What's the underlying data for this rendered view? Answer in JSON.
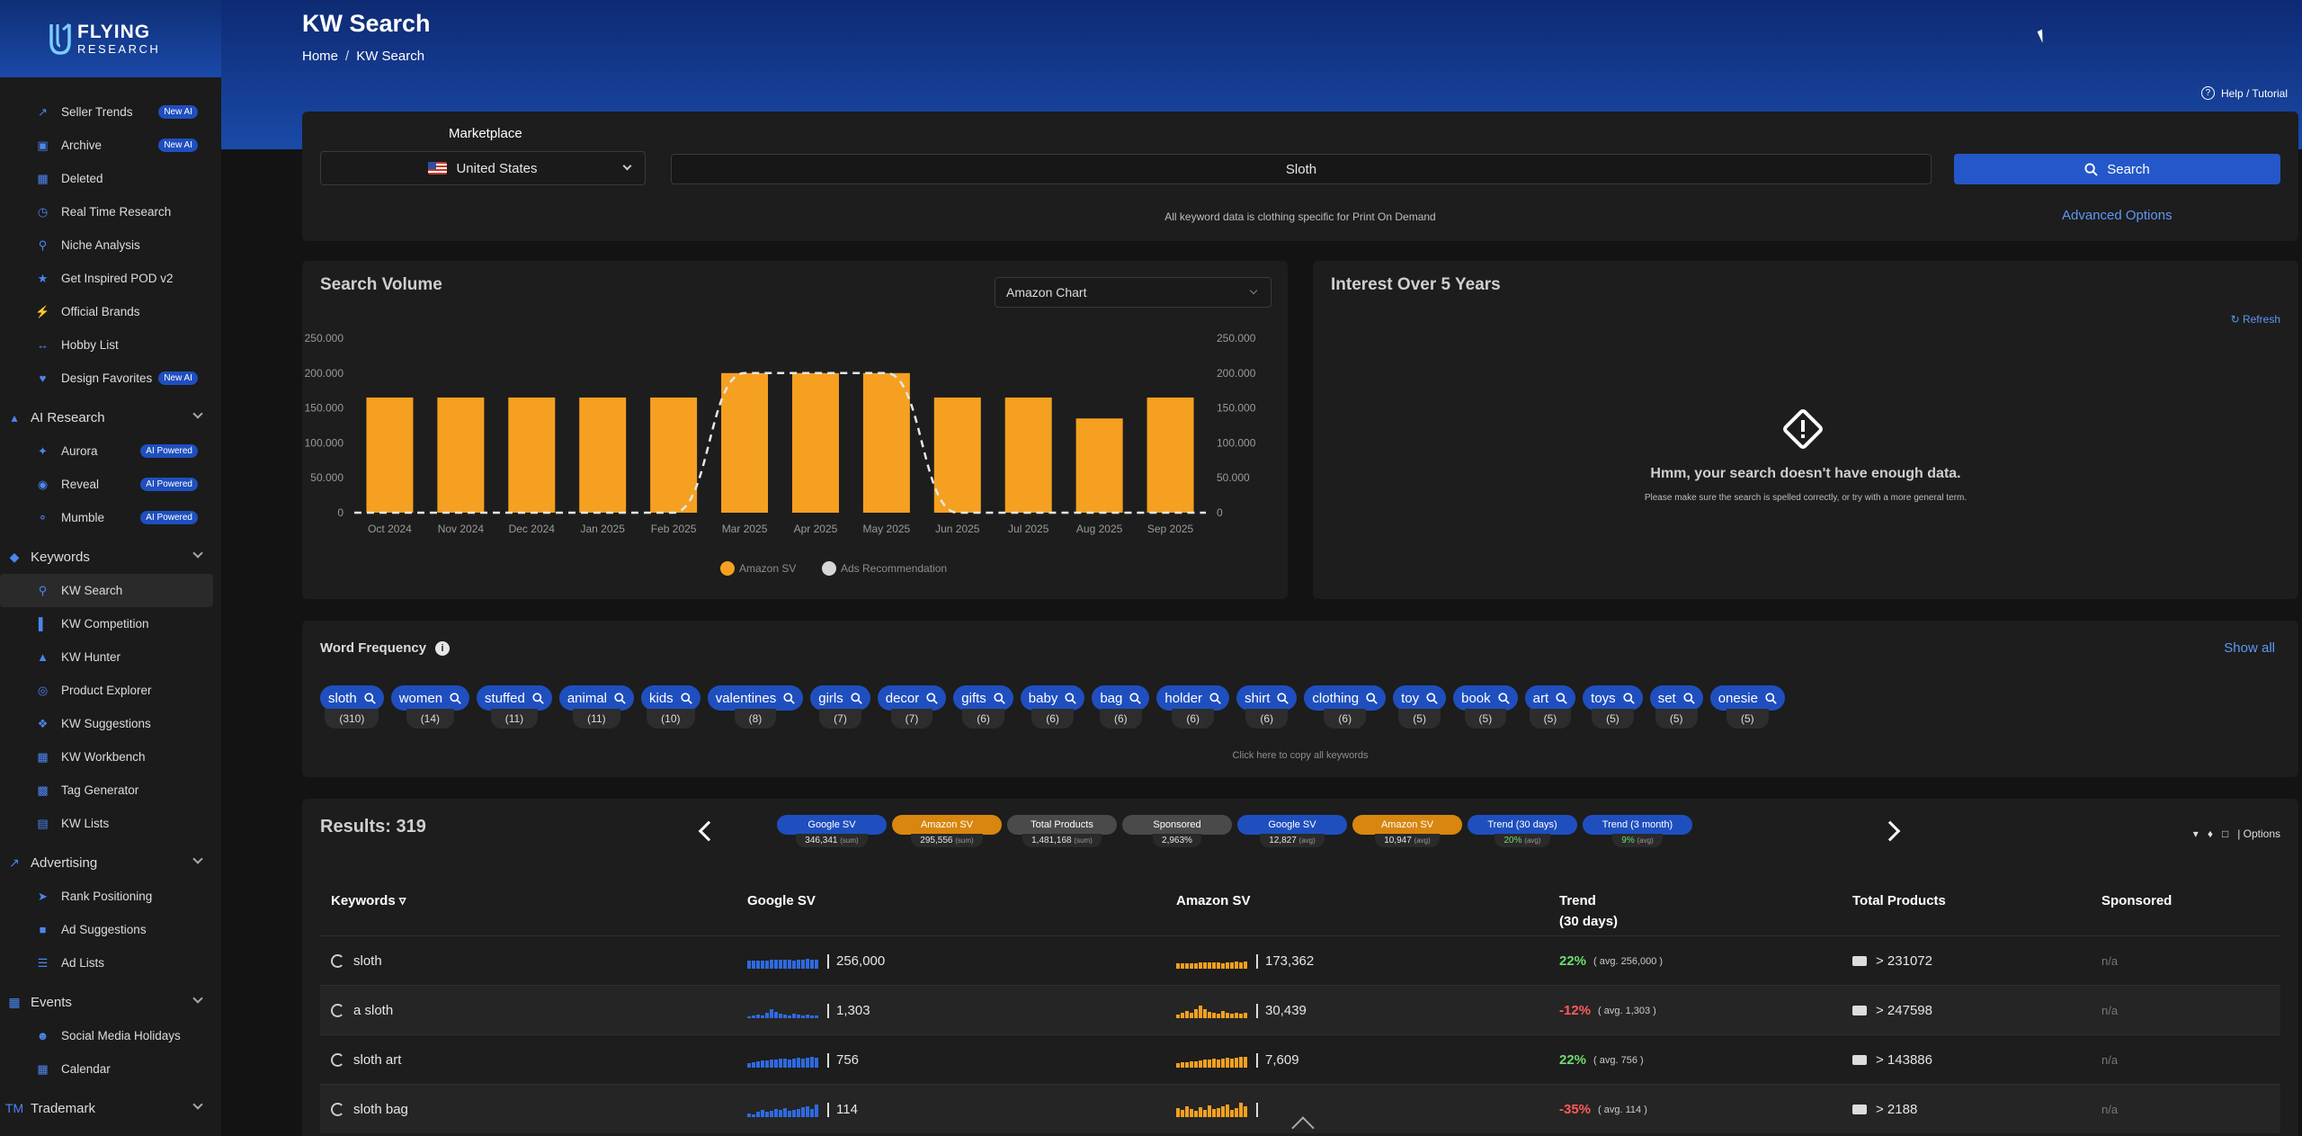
{
  "brand": {
    "line1": "FLYING",
    "line2": "RESEARCH"
  },
  "sidebar": {
    "top_items": [
      {
        "label": "Seller Trends",
        "badge": "New AI",
        "icon": "trend-icon"
      },
      {
        "label": "Archive",
        "badge": "New AI",
        "icon": "archive-icon"
      },
      {
        "label": "Deleted",
        "badge": "",
        "icon": "trash-icon"
      },
      {
        "label": "Real Time Research",
        "badge": "",
        "icon": "clock-icon"
      },
      {
        "label": "Niche Analysis",
        "badge": "",
        "icon": "search-icon"
      },
      {
        "label": "Get Inspired POD v2",
        "badge": "",
        "icon": "lightbulb-icon"
      },
      {
        "label": "Official Brands",
        "badge": "",
        "icon": "bolt-icon"
      },
      {
        "label": "Hobby List",
        "badge": "",
        "icon": "dumbbell-icon"
      },
      {
        "label": "Design Favorites",
        "badge": "New AI",
        "icon": "heart-icon"
      }
    ],
    "groups": [
      {
        "label": "AI Research",
        "icon": "flask-icon",
        "items": [
          {
            "label": "Aurora",
            "badge": "AI Powered",
            "icon": "sparkle-icon"
          },
          {
            "label": "Reveal",
            "badge": "AI Powered",
            "icon": "eye-icon"
          },
          {
            "label": "Mumble",
            "badge": "AI Powered",
            "icon": "microphone-icon"
          }
        ]
      },
      {
        "label": "Keywords",
        "icon": "tags-icon",
        "items": [
          {
            "label": "KW Search",
            "badge": "",
            "icon": "search-icon",
            "active": true
          },
          {
            "label": "KW Competition",
            "badge": "",
            "icon": "bar-chart-icon"
          },
          {
            "label": "KW Hunter",
            "badge": "",
            "icon": "chart-icon"
          },
          {
            "label": "Product Explorer",
            "badge": "",
            "icon": "compass-icon"
          },
          {
            "label": "KW Suggestions",
            "badge": "",
            "icon": "puzzle-icon"
          },
          {
            "label": "KW Workbench",
            "badge": "",
            "icon": "table-icon"
          },
          {
            "label": "Tag Generator",
            "badge": "",
            "icon": "briefcase-icon"
          },
          {
            "label": "KW Lists",
            "badge": "",
            "icon": "document-icon"
          }
        ]
      },
      {
        "label": "Advertising",
        "icon": "line-chart-icon",
        "items": [
          {
            "label": "Rank Positioning",
            "badge": "",
            "icon": "rocket-icon"
          },
          {
            "label": "Ad Suggestions",
            "badge": "",
            "icon": "ad-icon"
          },
          {
            "label": "Ad Lists",
            "badge": "",
            "icon": "list-icon"
          }
        ]
      },
      {
        "label": "Events",
        "icon": "calendar-icon",
        "items": [
          {
            "label": "Social Media Holidays",
            "badge": "",
            "icon": "people-icon"
          },
          {
            "label": "Calendar",
            "badge": "",
            "icon": "calendar-icon"
          }
        ]
      },
      {
        "label": "Trademark",
        "icon": "tm-icon",
        "items": []
      }
    ]
  },
  "header": {
    "title": "KW Search",
    "breadcrumb": {
      "home": "Home",
      "sep": "/",
      "current": "KW Search"
    },
    "help": "Help / Tutorial"
  },
  "search": {
    "marketplace_label": "Marketplace",
    "marketplace_value": "United States",
    "keyword_value": "Sloth",
    "button": "Search",
    "note": "All keyword data is clothing specific for Print On Demand",
    "advanced": "Advanced Options"
  },
  "search_volume": {
    "title": "Search Volume",
    "chart_select": "Amazon Chart"
  },
  "chart_data": {
    "type": "bar",
    "categories": [
      "Oct 2024",
      "Nov 2024",
      "Dec 2024",
      "Jan 2025",
      "Feb 2025",
      "Mar 2025",
      "Apr 2025",
      "May 2025",
      "Jun 2025",
      "Jul 2025",
      "Aug 2025",
      "Sep 2025"
    ],
    "series": [
      {
        "name": "Amazon SV",
        "type": "bar",
        "color": "#f5a020",
        "values": [
          165000,
          165000,
          165000,
          165000,
          165000,
          200000,
          200000,
          200000,
          165000,
          165000,
          135000,
          165000
        ]
      },
      {
        "name": "Ads Recommendation",
        "type": "line",
        "color": "#e6e6e6",
        "values": [
          0,
          0,
          0,
          0,
          0,
          200000,
          200000,
          200000,
          0,
          0,
          0,
          0
        ]
      }
    ],
    "ylim": [
      0,
      250000
    ],
    "yticks": [
      "0",
      "50.000",
      "100.000",
      "150.000",
      "200.000",
      "250.000"
    ],
    "legend": "bottom"
  },
  "interest": {
    "title": "Interest Over 5 Years",
    "refresh": "Refresh",
    "nodata_title": "Hmm, your search doesn't have enough data.",
    "nodata_sub": "Please make sure the search is spelled correctly, or try with a more general term."
  },
  "word_frequency": {
    "title": "Word Frequency",
    "show_all": "Show all",
    "copy_hint": "Click here to copy all keywords",
    "chips": [
      {
        "word": "sloth",
        "count": "(310)"
      },
      {
        "word": "women",
        "count": "(14)"
      },
      {
        "word": "stuffed",
        "count": "(11)"
      },
      {
        "word": "animal",
        "count": "(11)"
      },
      {
        "word": "kids",
        "count": "(10)"
      },
      {
        "word": "valentines",
        "count": "(8)"
      },
      {
        "word": "girls",
        "count": "(7)"
      },
      {
        "word": "decor",
        "count": "(7)"
      },
      {
        "word": "gifts",
        "count": "(6)"
      },
      {
        "word": "baby",
        "count": "(6)"
      },
      {
        "word": "bag",
        "count": "(6)"
      },
      {
        "word": "holder",
        "count": "(6)"
      },
      {
        "word": "shirt",
        "count": "(6)"
      },
      {
        "word": "clothing",
        "count": "(6)"
      },
      {
        "word": "toy",
        "count": "(5)"
      },
      {
        "word": "book",
        "count": "(5)"
      },
      {
        "word": "art",
        "count": "(5)"
      },
      {
        "word": "toys",
        "count": "(5)"
      },
      {
        "word": "set",
        "count": "(5)"
      },
      {
        "word": "onesie",
        "count": "(5)"
      }
    ]
  },
  "results": {
    "title": "Results: 319",
    "options": "| Options",
    "stats": [
      {
        "label": "Google SV",
        "value": "346,341",
        "unit": "(sum)",
        "color": "#1f4fbf"
      },
      {
        "label": "Amazon SV",
        "value": "295,556",
        "unit": "(sum)",
        "color": "#d8860f"
      },
      {
        "label": "Total Products",
        "value": "1,481,168",
        "unit": "(sum)",
        "color": "#4a4a4a"
      },
      {
        "label": "Sponsored",
        "value": "2,963%",
        "unit": "",
        "color": "#4a4a4a"
      },
      {
        "label": "Google SV",
        "value": "12,827",
        "unit": "(avg)",
        "color": "#1f4fbf"
      },
      {
        "label": "Amazon SV",
        "value": "10,947",
        "unit": "(avg)",
        "color": "#d8860f"
      },
      {
        "label": "Trend (30 days)",
        "value": "20%",
        "unit": "(avg)",
        "color": "#1f4fbf"
      },
      {
        "label": "Trend (3 month)",
        "value": "9%",
        "unit": "(avg)",
        "color": "#1f4fbf"
      }
    ],
    "columns": {
      "keywords": "Keywords",
      "google": "Google SV",
      "amazon": "Amazon SV",
      "trend_l1": "Trend",
      "trend_l2": "(30 days)",
      "total": "Total Products",
      "sponsored": "Sponsored"
    },
    "rows": [
      {
        "keyword": "sloth",
        "google": "256,000",
        "amazon": "173,362",
        "trend": "22%",
        "avg": "( avg. 256,000 )",
        "total": "> 231072",
        "sponsored": "n/a",
        "trend_pos": true
      },
      {
        "keyword": "a sloth",
        "google": "1,303",
        "amazon": "30,439",
        "trend": "-12%",
        "avg": "( avg. 1,303 )",
        "total": "> 247598",
        "sponsored": "n/a",
        "trend_pos": false
      },
      {
        "keyword": "sloth art",
        "google": "756",
        "amazon": "7,609",
        "trend": "22%",
        "avg": "( avg. 756 )",
        "total": "> 143886",
        "sponsored": "n/a",
        "trend_pos": true
      },
      {
        "keyword": "sloth bag",
        "google": "114",
        "amazon": "",
        "trend": "-35%",
        "avg": "( avg. 114 )",
        "total": "> 2188",
        "sponsored": "n/a",
        "trend_pos": false
      }
    ]
  }
}
